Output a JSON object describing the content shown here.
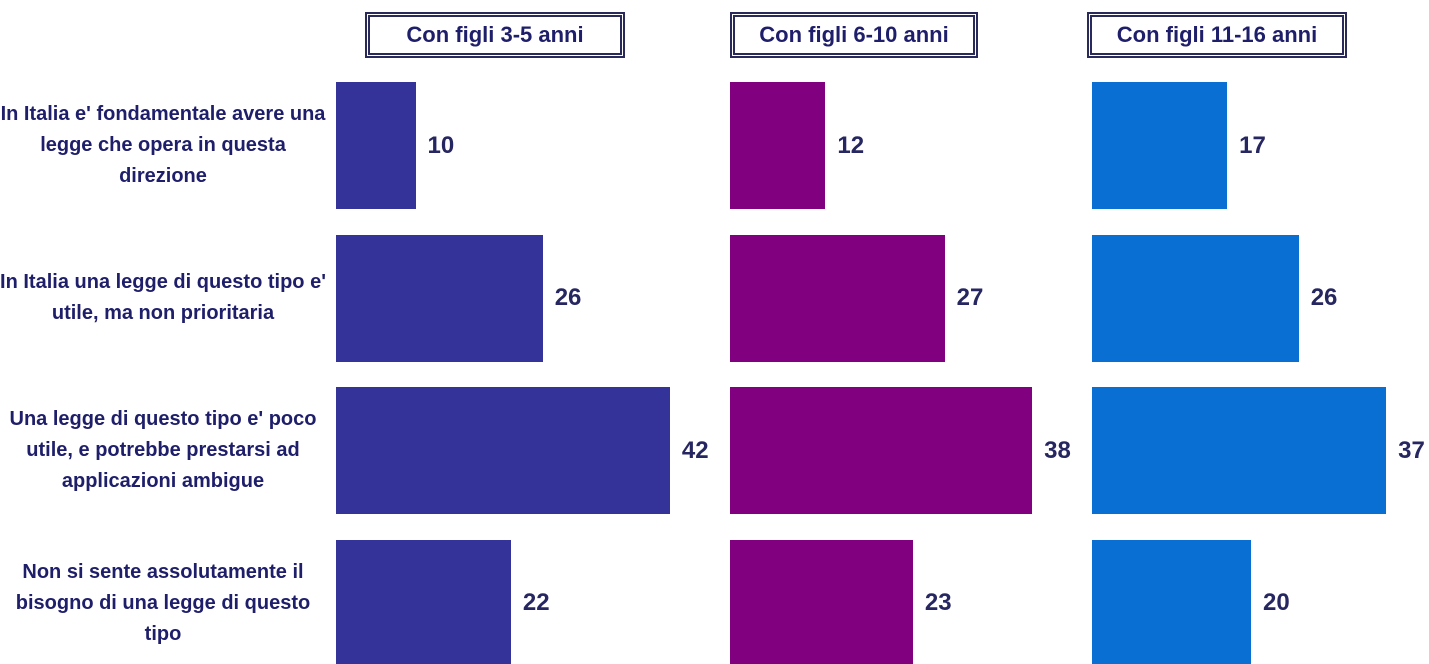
{
  "chart_data": {
    "type": "bar",
    "categories": [
      "In Italia e' fondamentale avere una legge che opera in questa direzione",
      "In Italia una legge di questo tipo e' utile, ma non prioritaria",
      "Una legge di questo tipo e' poco utile, e potrebbe prestarsi ad applicazioni ambigue",
      "Non si sente assolutamente il bisogno di una legge di questo tipo"
    ],
    "series": [
      {
        "name": "Con figli 3-5 anni",
        "color": "#333399",
        "values": [
          10,
          26,
          42,
          22
        ]
      },
      {
        "name": "Con figli 6-10 anni",
        "color": "#800080",
        "values": [
          12,
          27,
          38,
          23
        ]
      },
      {
        "name": "Con figli 11-16 anni",
        "color": "#0a6fd2",
        "values": [
          17,
          26,
          37,
          20
        ]
      }
    ]
  }
}
